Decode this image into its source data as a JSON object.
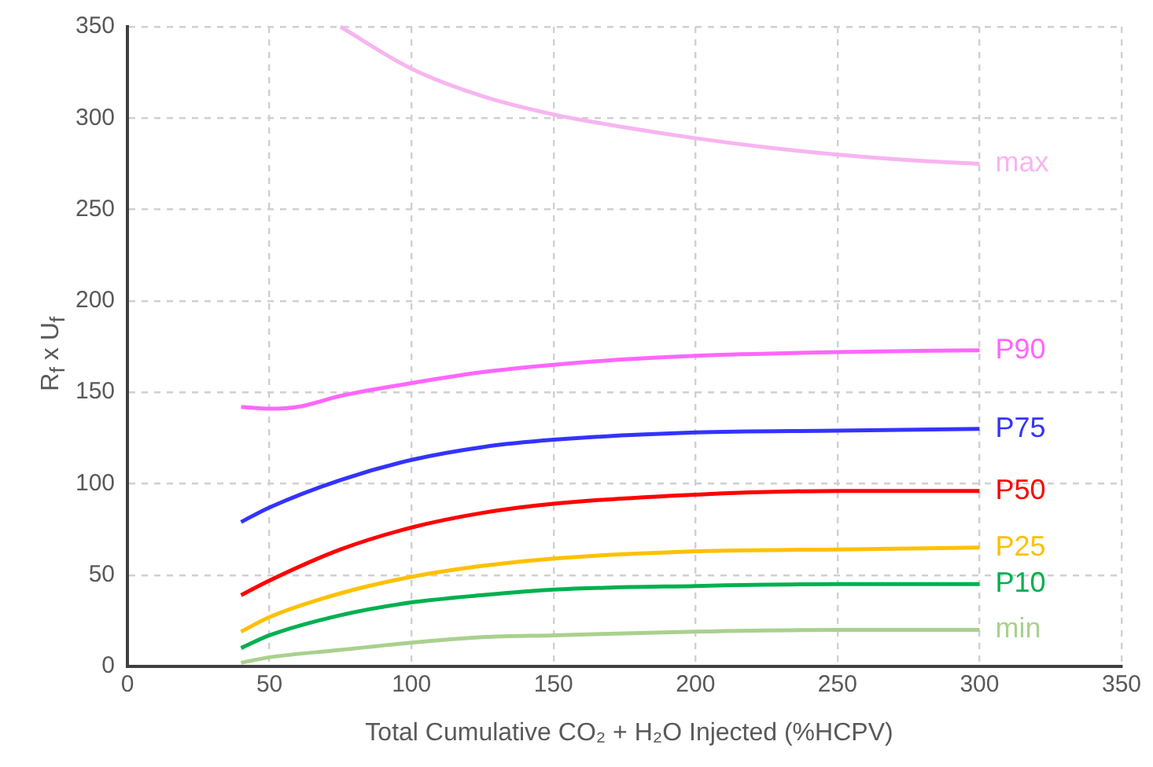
{
  "chart_data": {
    "type": "line",
    "xlabel": "Total Cumulative CO₂ + H₂O Injected (%HCPV)",
    "ylabel": "R$_{f}$ x U$_{f}$",
    "xlim": [
      0,
      350
    ],
    "xticks": [
      0,
      50,
      100,
      150,
      200,
      250,
      300,
      350
    ],
    "ylim": [
      0,
      350
    ],
    "yticks": [
      0,
      50,
      100,
      150,
      200,
      250,
      300,
      350
    ],
    "grid": true,
    "legend": false,
    "marker": "none",
    "line_style": "solid",
    "series": [
      {
        "name": "max",
        "color": "#f7b5f0",
        "x": [
          75,
          100,
          125,
          150,
          175,
          200,
          225,
          250,
          275,
          300
        ],
        "values": [
          350,
          327,
          312,
          302,
          295,
          289,
          284,
          280,
          277,
          275
        ]
      },
      {
        "name": "P90",
        "color": "#ff66ff",
        "x": [
          40,
          50,
          60,
          75,
          100,
          125,
          150,
          175,
          200,
          250,
          300
        ],
        "values": [
          142,
          141,
          142,
          148,
          155,
          161,
          165,
          168,
          170,
          172,
          173
        ]
      },
      {
        "name": "P75",
        "color": "#3333ff",
        "x": [
          40,
          50,
          75,
          100,
          125,
          150,
          200,
          250,
          300
        ],
        "values": [
          79,
          87,
          102,
          113,
          120,
          124,
          128,
          129,
          130
        ]
      },
      {
        "name": "P50",
        "color": "#ff0000",
        "x": [
          40,
          50,
          75,
          100,
          125,
          150,
          200,
          250,
          300
        ],
        "values": [
          39,
          47,
          64,
          76,
          84,
          89,
          94,
          96,
          96
        ]
      },
      {
        "name": "P25",
        "color": "#ffc000",
        "x": [
          40,
          50,
          75,
          100,
          125,
          150,
          200,
          250,
          300
        ],
        "values": [
          19,
          27,
          40,
          49,
          55,
          59,
          63,
          64,
          65
        ]
      },
      {
        "name": "P10",
        "color": "#00b050",
        "x": [
          40,
          50,
          75,
          100,
          125,
          150,
          200,
          250,
          300
        ],
        "values": [
          10,
          17,
          28,
          35,
          39,
          42,
          44,
          45,
          45
        ]
      },
      {
        "name": "min",
        "color": "#a9d18e",
        "x": [
          40,
          50,
          75,
          100,
          125,
          150,
          200,
          250,
          300
        ],
        "values": [
          2,
          5,
          9,
          13,
          16,
          17,
          19,
          20,
          20
        ]
      }
    ]
  }
}
